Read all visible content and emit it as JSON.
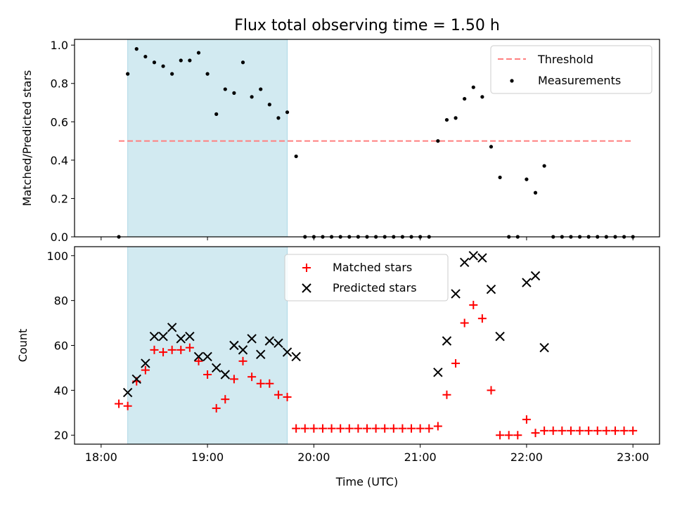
{
  "chart_data": [
    {
      "type": "scatter",
      "title": "Flux total observing time = 1.50 h",
      "xlabel": "",
      "ylabel": "Matched/Predicted stars",
      "xlim": [
        "17:45",
        "23:15"
      ],
      "ylim": [
        0,
        1.03
      ],
      "yticks": [
        "0.0",
        "0.2",
        "0.4",
        "0.6",
        "0.8",
        "1.0"
      ],
      "xticks": [
        "18:00",
        "19:00",
        "20:00",
        "21:00",
        "22:00",
        "23:00"
      ],
      "shaded_interval": [
        "18:15",
        "19:45"
      ],
      "shade_color": "#add8e6",
      "legend": {
        "position": "top-right",
        "entries": [
          "Threshold",
          "Measurements"
        ]
      },
      "threshold": {
        "name": "Threshold",
        "value": 0.5,
        "x_range": [
          "18:10",
          "23:00"
        ],
        "color": "#ff7f7f"
      },
      "series": [
        {
          "name": "Measurements",
          "marker": "dot",
          "color": "#000000",
          "x": [
            "18:10",
            "18:15",
            "18:20",
            "18:25",
            "18:30",
            "18:35",
            "18:40",
            "18:45",
            "18:50",
            "18:55",
            "19:00",
            "19:05",
            "19:10",
            "19:15",
            "19:20",
            "19:25",
            "19:30",
            "19:35",
            "19:40",
            "19:45",
            "19:50",
            "19:55",
            "20:00",
            "20:05",
            "20:10",
            "20:15",
            "20:20",
            "20:25",
            "20:30",
            "20:35",
            "20:40",
            "20:45",
            "20:50",
            "20:55",
            "21:00",
            "21:05",
            "21:10",
            "21:15",
            "21:20",
            "21:25",
            "21:30",
            "21:35",
            "21:40",
            "21:45",
            "21:50",
            "21:55",
            "22:00",
            "22:05",
            "22:10",
            "22:15",
            "22:20",
            "22:25",
            "22:30",
            "22:35",
            "22:40",
            "22:45",
            "22:50",
            "22:55",
            "23:00"
          ],
          "y": [
            0.0,
            0.85,
            0.98,
            0.94,
            0.91,
            0.89,
            0.85,
            0.92,
            0.92,
            0.96,
            0.85,
            0.64,
            0.77,
            0.75,
            0.91,
            0.73,
            0.77,
            0.69,
            0.62,
            0.65,
            0.42,
            0.0,
            0.0,
            0.0,
            0.0,
            0.0,
            0.0,
            0.0,
            0.0,
            0.0,
            0.0,
            0.0,
            0.0,
            0.0,
            0.0,
            0.0,
            0.5,
            0.61,
            0.62,
            0.72,
            0.78,
            0.73,
            0.47,
            0.31,
            0.0,
            0.0,
            0.3,
            0.23,
            0.37,
            0.0,
            0.0,
            0.0,
            0.0,
            0.0,
            0.0,
            0.0,
            0.0,
            0.0,
            0.0
          ]
        }
      ]
    },
    {
      "type": "scatter",
      "title": "",
      "xlabel": "Time (UTC)",
      "ylabel": "Count",
      "xlim": [
        "17:45",
        "23:15"
      ],
      "ylim": [
        16,
        104
      ],
      "yticks": [
        "20",
        "40",
        "60",
        "80",
        "100"
      ],
      "xticks": [
        "18:00",
        "19:00",
        "20:00",
        "21:00",
        "22:00",
        "23:00"
      ],
      "shaded_interval": [
        "18:15",
        "19:45"
      ],
      "shade_color": "#add8e6",
      "legend": {
        "position": "top-center",
        "entries": [
          "Matched stars",
          "Predicted stars"
        ]
      },
      "series": [
        {
          "name": "Matched stars",
          "marker": "plus",
          "color": "#ff0000",
          "x": [
            "18:10",
            "18:15",
            "18:20",
            "18:25",
            "18:30",
            "18:35",
            "18:40",
            "18:45",
            "18:50",
            "18:55",
            "19:00",
            "19:05",
            "19:10",
            "19:15",
            "19:20",
            "19:25",
            "19:30",
            "19:35",
            "19:40",
            "19:45",
            "19:50",
            "19:55",
            "20:00",
            "20:05",
            "20:10",
            "20:15",
            "20:20",
            "20:25",
            "20:30",
            "20:35",
            "20:40",
            "20:45",
            "20:50",
            "20:55",
            "21:00",
            "21:05",
            "21:10",
            "21:15",
            "21:20",
            "21:25",
            "21:30",
            "21:35",
            "21:40",
            "21:45",
            "21:50",
            "21:55",
            "22:00",
            "22:05",
            "22:10",
            "22:15",
            "22:20",
            "22:25",
            "22:30",
            "22:35",
            "22:40",
            "22:45",
            "22:50",
            "22:55",
            "23:00"
          ],
          "y": [
            34,
            33,
            44,
            49,
            58,
            57,
            58,
            58,
            59,
            53,
            47,
            32,
            36,
            45,
            53,
            46,
            43,
            43,
            38,
            37,
            23,
            23,
            23,
            23,
            23,
            23,
            23,
            23,
            23,
            23,
            23,
            23,
            23,
            23,
            23,
            23,
            24,
            38,
            52,
            70,
            78,
            72,
            40,
            20,
            20,
            20,
            27,
            21,
            22,
            22,
            22,
            22,
            22,
            22,
            22,
            22,
            22,
            22,
            22
          ]
        },
        {
          "name": "Predicted stars",
          "marker": "x",
          "color": "#000000",
          "x": [
            "18:15",
            "18:20",
            "18:25",
            "18:30",
            "18:35",
            "18:40",
            "18:45",
            "18:50",
            "18:55",
            "19:00",
            "19:05",
            "19:10",
            "19:15",
            "19:20",
            "19:25",
            "19:30",
            "19:35",
            "19:40",
            "19:45",
            "19:50",
            "21:10",
            "21:15",
            "21:20",
            "21:25",
            "21:30",
            "21:35",
            "21:40",
            "21:45",
            "22:00",
            "22:05",
            "22:10"
          ],
          "y": [
            39,
            45,
            52,
            64,
            64,
            68,
            63,
            64,
            55,
            55,
            50,
            47,
            60,
            58,
            63,
            56,
            62,
            61,
            57,
            55,
            48,
            62,
            83,
            97,
            100,
            99,
            85,
            64,
            88,
            91,
            59
          ]
        }
      ]
    }
  ]
}
